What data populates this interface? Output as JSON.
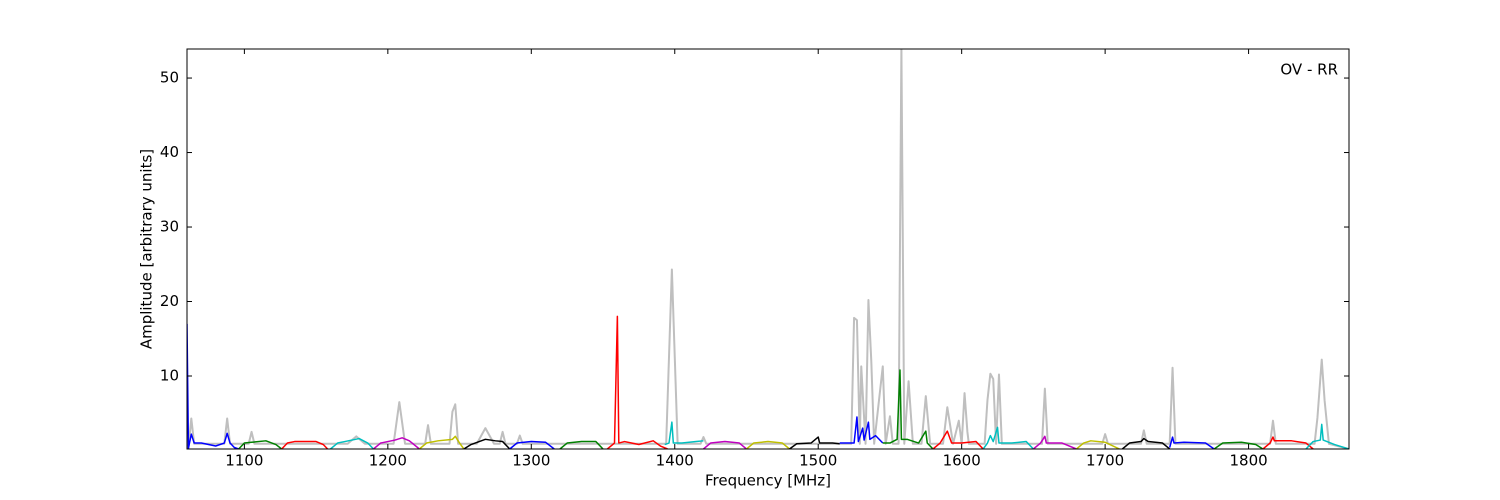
{
  "chart_data": {
    "type": "line",
    "annotation": "OV - RR",
    "x_label": "Frequency [MHz]",
    "y_label": "Amplitude [arbitrary units]",
    "xlim": [
      1060,
      1870
    ],
    "ylim": [
      0.2,
      53.9
    ],
    "xticks": [
      1100,
      1200,
      1300,
      1400,
      1500,
      1600,
      1700,
      1800
    ],
    "yticks": [
      10,
      20,
      30,
      40,
      50
    ],
    "grid": false,
    "series": [
      {
        "color": "#bfbfbf",
        "x": [
          1060,
          1061,
          1063,
          1065,
          1086,
          1088,
          1090,
          1103,
          1105,
          1107,
          1172,
          1178,
          1184,
          1204,
          1208,
          1212,
          1226,
          1228,
          1230,
          1243,
          1245,
          1247,
          1249,
          1262,
          1268,
          1274,
          1278,
          1280,
          1282,
          1290,
          1292,
          1294,
          1394,
          1398,
          1402,
          1418,
          1420,
          1422,
          1523,
          1525,
          1527,
          1529,
          1530,
          1533,
          1535,
          1537,
          1539,
          1545,
          1547,
          1550,
          1552,
          1556,
          1558,
          1560,
          1563,
          1566,
          1572,
          1575,
          1578,
          1587,
          1590,
          1594,
          1598,
          1600,
          1602,
          1604,
          1605,
          1616,
          1618,
          1620,
          1622,
          1624,
          1626,
          1628,
          1656,
          1658,
          1660,
          1698,
          1700,
          1702,
          1725,
          1727,
          1729,
          1745,
          1747,
          1749,
          1815,
          1817,
          1819,
          1846,
          1848,
          1851,
          1853,
          1856,
          1870
        ],
        "values": [
          0.8,
          0.3,
          4.3,
          0.9,
          0.9,
          4.3,
          0.9,
          0.9,
          2.5,
          0.9,
          0.9,
          1.9,
          0.9,
          0.9,
          6.5,
          0.9,
          0.9,
          3.4,
          0.9,
          0.9,
          5.2,
          6.2,
          0.9,
          0.9,
          3.0,
          0.9,
          0.9,
          2.5,
          0.9,
          0.9,
          2.0,
          0.9,
          0.9,
          24.3,
          0.9,
          0.9,
          1.8,
          0.9,
          0.9,
          17.8,
          17.5,
          0.9,
          11.3,
          0.9,
          20.2,
          12.0,
          0.9,
          11.3,
          0.9,
          4.6,
          0.9,
          0.9,
          54.0,
          0.9,
          9.3,
          0.9,
          0.9,
          7.3,
          0.9,
          0.9,
          5.8,
          0.9,
          4.0,
          0.9,
          7.7,
          2.5,
          0.9,
          0.9,
          6.8,
          10.3,
          9.6,
          0.9,
          10.2,
          0.9,
          0.9,
          8.3,
          0.9,
          0.9,
          2.2,
          0.9,
          0.9,
          2.7,
          0.9,
          0.9,
          11.1,
          0.9,
          0.9,
          4.0,
          0.9,
          0.9,
          4.4,
          12.2,
          6.7,
          0.9,
          0.2
        ]
      },
      {
        "color": "#0000ff",
        "x": [
          1060,
          1061,
          1063,
          1065,
          1070,
          1080,
          1086,
          1088,
          1090,
          1093,
          1096
        ],
        "values": [
          17,
          0.3,
          2.2,
          1.0,
          1.0,
          0.6,
          1.0,
          2.3,
          1.0,
          0.4,
          0.2
        ]
      },
      {
        "color": "#008000",
        "x": [
          1096,
          1100,
          1105,
          1115,
          1122,
          1126
        ],
        "values": [
          0.2,
          1.0,
          1.1,
          1.3,
          0.8,
          0.2
        ]
      },
      {
        "color": "#ff0000",
        "x": [
          1126,
          1130,
          1135,
          1150,
          1155,
          1158
        ],
        "values": [
          0.2,
          1.0,
          1.2,
          1.2,
          0.8,
          0.2
        ]
      },
      {
        "color": "#00bfbf",
        "x": [
          1160,
          1165,
          1170,
          1180,
          1186,
          1190
        ],
        "values": [
          0.2,
          1.0,
          1.2,
          1.6,
          1.0,
          0.2
        ]
      },
      {
        "color": "#bf00bf",
        "x": [
          1190,
          1195,
          1205,
          1210,
          1215,
          1222
        ],
        "values": [
          0.2,
          1.0,
          1.4,
          1.7,
          1.3,
          0.2
        ]
      },
      {
        "color": "#bfbf00",
        "x": [
          1222,
          1227,
          1235,
          1245,
          1247,
          1250,
          1253
        ],
        "values": [
          0.2,
          1.0,
          1.3,
          1.5,
          1.9,
          1.0,
          0.2
        ]
      },
      {
        "color": "#000000",
        "x": [
          1253,
          1258,
          1268,
          1275,
          1280,
          1285
        ],
        "values": [
          0.2,
          0.8,
          1.5,
          1.3,
          1.2,
          0.2
        ]
      },
      {
        "color": "#0000ff",
        "x": [
          1285,
          1290,
          1300,
          1310,
          1316
        ],
        "values": [
          0.2,
          1.0,
          1.2,
          1.1,
          0.2
        ]
      },
      {
        "color": "#008000",
        "x": [
          1320,
          1325,
          1335,
          1345,
          1350
        ],
        "values": [
          0.2,
          1.0,
          1.2,
          1.2,
          0.2
        ]
      },
      {
        "color": "#ff0000",
        "x": [
          1353,
          1358,
          1360,
          1361,
          1365,
          1375,
          1385,
          1390,
          1395
        ],
        "values": [
          0.2,
          1.0,
          18,
          1.0,
          1.2,
          0.8,
          1.3,
          0.6,
          0.2
        ]
      },
      {
        "color": "#00bfbf",
        "x": [
          1393,
          1396,
          1398,
          1399,
          1405,
          1415,
          1420
        ],
        "values": [
          0.8,
          1.0,
          3.8,
          1.0,
          1.0,
          1.2,
          1.3
        ]
      },
      {
        "color": "#bf00bf",
        "x": [
          1420,
          1425,
          1435,
          1445,
          1450
        ],
        "values": [
          0.2,
          1.0,
          1.2,
          1.0,
          0.2
        ]
      },
      {
        "color": "#bfbf00",
        "x": [
          1450,
          1455,
          1465,
          1475,
          1480
        ],
        "values": [
          0.2,
          1.0,
          1.2,
          1.0,
          0.2
        ]
      },
      {
        "color": "#000000",
        "x": [
          1480,
          1485,
          1495,
          1500,
          1501,
          1510,
          1515
        ],
        "values": [
          0.2,
          0.9,
          1.0,
          1.8,
          1.0,
          1.0,
          0.9
        ]
      },
      {
        "color": "#0000ff",
        "x": [
          1515,
          1520,
          1525,
          1527,
          1528,
          1531,
          1532,
          1535,
          1536,
          1540,
          1545
        ],
        "values": [
          1.0,
          1.0,
          1.0,
          4.5,
          1.2,
          3.0,
          1.4,
          3.8,
          1.5,
          2.0,
          1.0
        ]
      },
      {
        "color": "#008000",
        "x": [
          1545,
          1550,
          1555,
          1557,
          1558,
          1562,
          1570,
          1575,
          1576,
          1580
        ],
        "values": [
          1.0,
          1.0,
          1.5,
          10.8,
          1.5,
          1.5,
          1.0,
          2.6,
          1.0,
          0.2
        ]
      },
      {
        "color": "#ff0000",
        "x": [
          1580,
          1585,
          1590,
          1593,
          1600,
          1610,
          1615
        ],
        "values": [
          0.2,
          1.0,
          2.6,
          1.0,
          1.0,
          1.2,
          0.2
        ]
      },
      {
        "color": "#00bfbf",
        "x": [
          1615,
          1618,
          1620,
          1622,
          1625,
          1626,
          1635,
          1645,
          1650
        ],
        "values": [
          0.2,
          1.0,
          2.0,
          1.2,
          3.1,
          1.0,
          1.0,
          1.2,
          0.2
        ]
      },
      {
        "color": "#bf00bf",
        "x": [
          1650,
          1655,
          1658,
          1659,
          1670,
          1680
        ],
        "values": [
          0.2,
          1.0,
          1.9,
          1.0,
          1.0,
          0.2
        ]
      },
      {
        "color": "#bfbf00",
        "x": [
          1680,
          1685,
          1690,
          1700,
          1710
        ],
        "values": [
          0.2,
          1.0,
          1.3,
          1.1,
          0.2
        ]
      },
      {
        "color": "#000000",
        "x": [
          1712,
          1717,
          1725,
          1727,
          1730,
          1740,
          1745
        ],
        "values": [
          0.2,
          1.0,
          1.2,
          1.6,
          1.2,
          1.0,
          0.2
        ]
      },
      {
        "color": "#0000ff",
        "x": [
          1745,
          1747,
          1748,
          1755,
          1770,
          1776
        ],
        "values": [
          0.4,
          1.8,
          1.0,
          1.1,
          1.0,
          0.2
        ]
      },
      {
        "color": "#008000",
        "x": [
          1776,
          1782,
          1795,
          1805,
          1810
        ],
        "values": [
          0.2,
          1.0,
          1.1,
          0.8,
          0.2
        ]
      },
      {
        "color": "#ff0000",
        "x": [
          1810,
          1815,
          1817,
          1818,
          1830,
          1840,
          1845
        ],
        "values": [
          0.2,
          1.0,
          1.8,
          1.3,
          1.3,
          1.0,
          0.2
        ]
      },
      {
        "color": "#00bfbf",
        "x": [
          1840,
          1845,
          1850,
          1851,
          1852,
          1860,
          1870
        ],
        "values": [
          0.2,
          1.2,
          1.4,
          3.5,
          1.4,
          0.8,
          0.2
        ]
      }
    ]
  }
}
